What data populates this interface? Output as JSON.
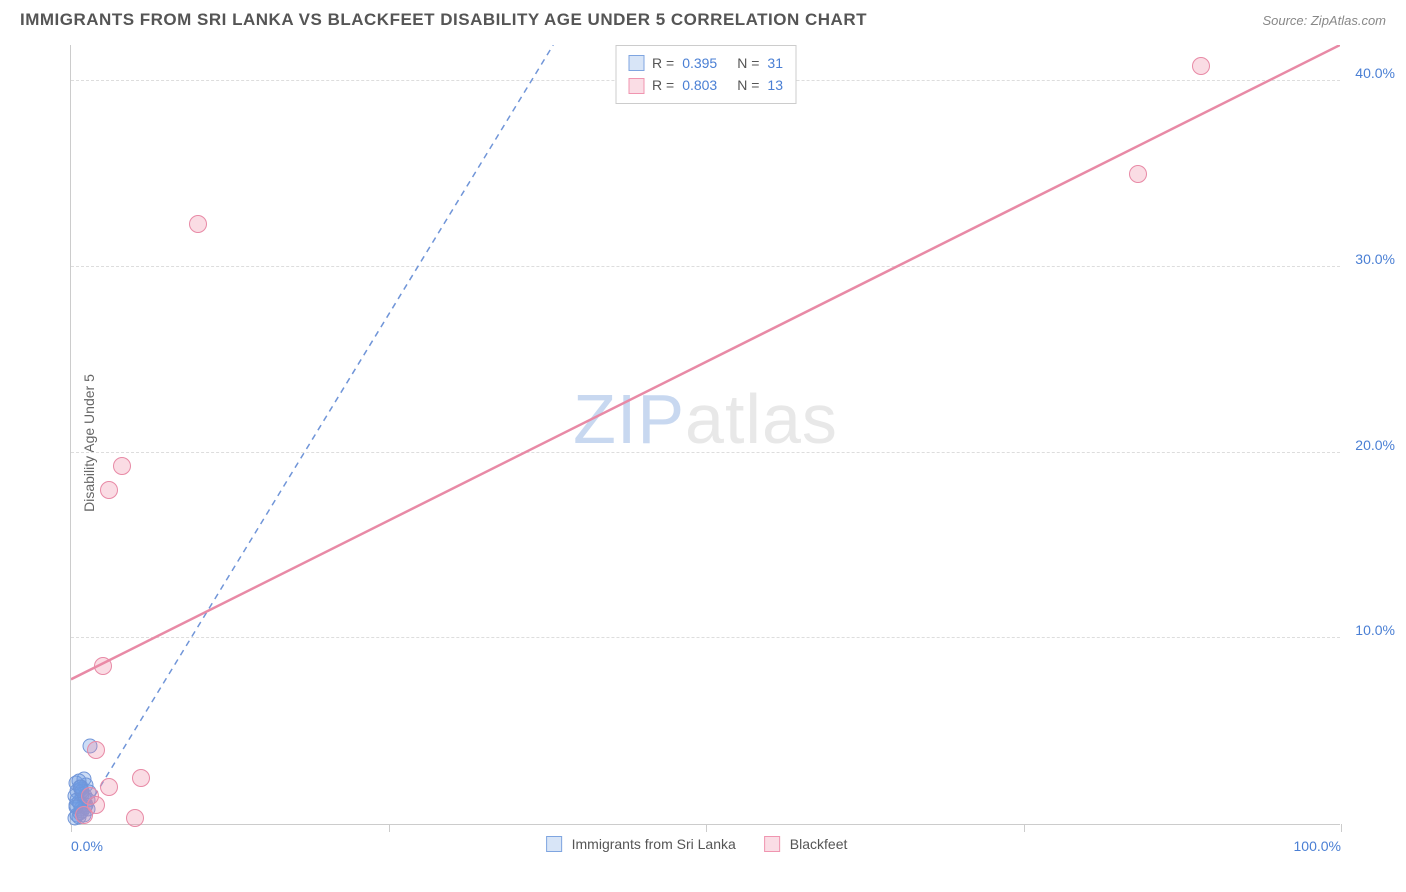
{
  "chart": {
    "type": "scatter",
    "title": "IMMIGRANTS FROM SRI LANKA VS BLACKFEET DISABILITY AGE UNDER 5 CORRELATION CHART",
    "source": "Source: ZipAtlas.com",
    "ylabel": "Disability Age Under 5",
    "watermark_parts": {
      "z": "ZIP",
      "rest": "atlas"
    },
    "background_color": "#ffffff",
    "grid_color": "#dddddd",
    "axis_color": "#cccccc",
    "text_color": "#555555",
    "highlight_color": "#4a7fd4",
    "xlim": [
      0,
      100
    ],
    "ylim": [
      0,
      42
    ],
    "xticks": [
      {
        "pos": 0,
        "label": "0.0%",
        "class": "first"
      },
      {
        "pos": 25,
        "label": ""
      },
      {
        "pos": 50,
        "label": ""
      },
      {
        "pos": 75,
        "label": ""
      },
      {
        "pos": 100,
        "label": "100.0%",
        "class": "last"
      }
    ],
    "yticks": [
      {
        "pos": 10,
        "label": "10.0%"
      },
      {
        "pos": 20,
        "label": "20.0%"
      },
      {
        "pos": 30,
        "label": "30.0%"
      },
      {
        "pos": 40,
        "label": "40.0%"
      }
    ],
    "series": [
      {
        "name": "Immigrants from Sri Lanka",
        "key": "sri_lanka",
        "color_fill": "rgba(110,155,225,0.35)",
        "color_stroke": "#7095d8",
        "swatch_fill": "#d8e5f7",
        "swatch_stroke": "#7fa5e0",
        "R": "0.395",
        "N": "31",
        "marker_size": 15,
        "line_style": "dashed",
        "line_width": 1.5,
        "line_start": {
          "x": 0.5,
          "y": 0
        },
        "line_end": {
          "x": 38,
          "y": 42
        },
        "points": [
          {
            "x": 0.3,
            "y": 0.3
          },
          {
            "x": 0.5,
            "y": 0.5
          },
          {
            "x": 0.8,
            "y": 0.8
          },
          {
            "x": 0.4,
            "y": 1.0
          },
          {
            "x": 0.6,
            "y": 1.2
          },
          {
            "x": 1.0,
            "y": 1.4
          },
          {
            "x": 0.7,
            "y": 0.6
          },
          {
            "x": 1.2,
            "y": 1.0
          },
          {
            "x": 0.9,
            "y": 1.6
          },
          {
            "x": 0.5,
            "y": 1.8
          },
          {
            "x": 1.1,
            "y": 0.9
          },
          {
            "x": 0.3,
            "y": 1.5
          },
          {
            "x": 0.8,
            "y": 2.0
          },
          {
            "x": 1.3,
            "y": 1.3
          },
          {
            "x": 0.6,
            "y": 0.4
          },
          {
            "x": 0.4,
            "y": 2.2
          },
          {
            "x": 1.0,
            "y": 2.4
          },
          {
            "x": 0.7,
            "y": 1.1
          },
          {
            "x": 1.4,
            "y": 1.7
          },
          {
            "x": 0.9,
            "y": 0.7
          },
          {
            "x": 1.2,
            "y": 2.1
          },
          {
            "x": 0.5,
            "y": 1.3
          },
          {
            "x": 0.8,
            "y": 1.9
          },
          {
            "x": 1.1,
            "y": 1.5
          },
          {
            "x": 0.6,
            "y": 2.3
          },
          {
            "x": 1.3,
            "y": 0.8
          },
          {
            "x": 0.4,
            "y": 0.9
          },
          {
            "x": 0.9,
            "y": 1.8
          },
          {
            "x": 1.0,
            "y": 0.5
          },
          {
            "x": 0.7,
            "y": 2.0
          },
          {
            "x": 1.5,
            "y": 4.2
          }
        ]
      },
      {
        "name": "Blackfeet",
        "key": "blackfeet",
        "color_fill": "rgba(240,140,165,0.3)",
        "color_stroke": "#e88aa6",
        "swatch_fill": "#fadde5",
        "swatch_stroke": "#f095b0",
        "R": "0.803",
        "N": "13",
        "marker_size": 18,
        "line_style": "solid",
        "line_width": 2.5,
        "line_start": {
          "x": 0,
          "y": 7.8
        },
        "line_end": {
          "x": 100,
          "y": 42
        },
        "points": [
          {
            "x": 1.0,
            "y": 0.5
          },
          {
            "x": 2.0,
            "y": 1.0
          },
          {
            "x": 5.0,
            "y": 0.3
          },
          {
            "x": 3.0,
            "y": 2.0
          },
          {
            "x": 2.0,
            "y": 4.0
          },
          {
            "x": 5.5,
            "y": 2.5
          },
          {
            "x": 2.5,
            "y": 8.5
          },
          {
            "x": 3.0,
            "y": 18.0
          },
          {
            "x": 4.0,
            "y": 19.3
          },
          {
            "x": 10.0,
            "y": 32.3
          },
          {
            "x": 84.0,
            "y": 35.0
          },
          {
            "x": 89.0,
            "y": 40.8
          },
          {
            "x": 1.5,
            "y": 1.5
          }
        ]
      }
    ],
    "legend_bottom": [
      {
        "key": "sri_lanka",
        "label": "Immigrants from Sri Lanka"
      },
      {
        "key": "blackfeet",
        "label": "Blackfeet"
      }
    ]
  }
}
